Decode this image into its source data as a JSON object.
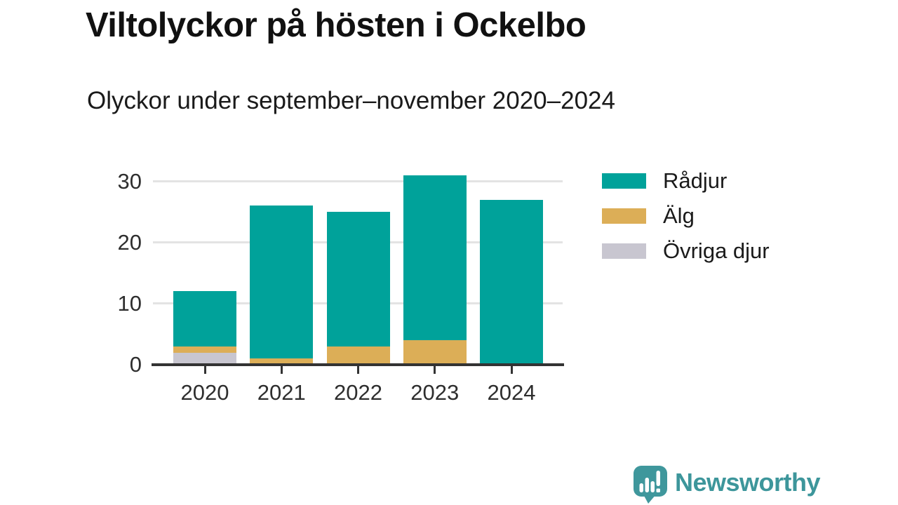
{
  "header": {
    "title": "Viltolyckor på hösten i Ockelbo",
    "subtitle": "Olyckor under september–november 2020–2024"
  },
  "chart_data": {
    "type": "bar",
    "stacked": true,
    "title": "Viltolyckor på hösten i Ockelbo",
    "subtitle": "Olyckor under september–november 2020–2024",
    "categories": [
      "2020",
      "2021",
      "2022",
      "2023",
      "2024"
    ],
    "series": [
      {
        "name": "Rådjur",
        "color": "#00a29a",
        "values": [
          9,
          25,
          22,
          27,
          27
        ]
      },
      {
        "name": "Älg",
        "color": "#dcae57",
        "values": [
          1,
          1,
          3,
          4,
          0
        ]
      },
      {
        "name": "Övriga djur",
        "color": "#c8c6d0",
        "values": [
          2,
          0,
          0,
          0,
          0
        ]
      }
    ],
    "stack_order_bottom_to_top": [
      "Övriga djur",
      "Älg",
      "Rådjur"
    ],
    "totals": [
      12,
      26,
      25,
      31,
      27
    ],
    "xlabel": "",
    "ylabel": "",
    "ylim": [
      0,
      30
    ],
    "yticks": [
      0,
      10,
      20,
      30
    ],
    "grid": true,
    "legend_position": "right"
  },
  "colors": {
    "axis": "#333333",
    "gridline": "#e3e3e3",
    "text": "#1a1a1a"
  },
  "branding": {
    "logo_text": "Newsworthy",
    "logo_color": "#3d969b"
  }
}
